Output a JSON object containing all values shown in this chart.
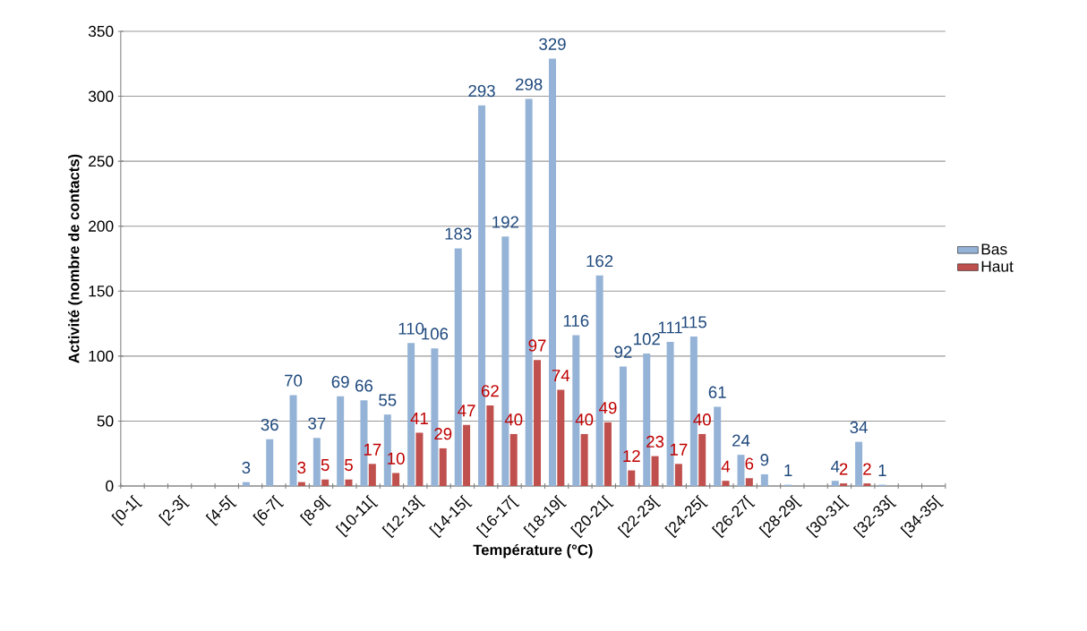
{
  "chart_data": {
    "type": "bar",
    "xlabel": "Température (°C)",
    "ylabel": "Activité (nombre de contacts)",
    "categories": [
      "[0-1[",
      null,
      "[2-3[",
      null,
      "[4-5[",
      null,
      "[6-7[",
      null,
      "[8-9[",
      null,
      "[10-11[",
      null,
      "[12-13[",
      null,
      "[14-15[",
      null,
      "[16-17[",
      null,
      "[18-19[",
      null,
      "[20-21[",
      null,
      "[22-23[",
      null,
      "[24-25[",
      null,
      "[26-27[",
      null,
      "[28-29[",
      null,
      "[30-31[",
      null,
      "[32-33[",
      null,
      "[34-35["
    ],
    "series": [
      {
        "name": "Bas",
        "color": "#95b3d7",
        "values": [
          null,
          null,
          null,
          null,
          null,
          3,
          36,
          70,
          37,
          69,
          66,
          55,
          110,
          106,
          183,
          293,
          192,
          298,
          329,
          116,
          162,
          92,
          102,
          111,
          115,
          61,
          24,
          9,
          1,
          null,
          4,
          34,
          1,
          null,
          null
        ]
      },
      {
        "name": "Haut",
        "color": "#c0504d",
        "values": [
          null,
          null,
          null,
          null,
          null,
          null,
          null,
          3,
          5,
          5,
          17,
          10,
          41,
          29,
          47,
          62,
          40,
          97,
          74,
          40,
          49,
          12,
          23,
          17,
          40,
          4,
          6,
          null,
          null,
          null,
          2,
          2,
          null,
          null,
          null
        ]
      }
    ],
    "ylim": [
      0,
      350
    ],
    "yticks": [
      0,
      50,
      100,
      150,
      200,
      250,
      300,
      350
    ],
    "grid": "y",
    "legend": "right",
    "data_labels": true
  }
}
